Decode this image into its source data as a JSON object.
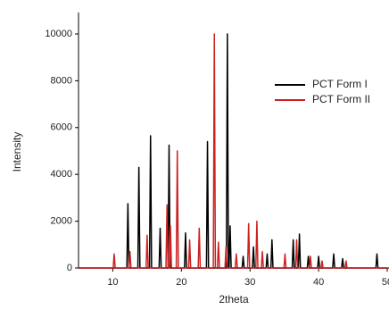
{
  "chart_data": {
    "type": "line",
    "xlabel": "2theta",
    "ylabel": "Intensity",
    "xlim": [
      5,
      50
    ],
    "ylim": [
      0,
      10000
    ],
    "xticks": [
      10,
      20,
      30,
      40,
      50
    ],
    "yticks": [
      0,
      2000,
      4000,
      6000,
      8000,
      10000
    ],
    "legend": "upper right",
    "series": [
      {
        "name": "PCT Form I",
        "color": "#000000",
        "x": [
          5,
          12.05,
          12.2,
          12.35,
          13.65,
          13.8,
          13.95,
          15.35,
          15.5,
          15.65,
          16.75,
          16.9,
          17.05,
          18.05,
          18.2,
          18.35,
          20.45,
          20.6,
          20.75,
          23.65,
          23.8,
          23.95,
          26.55,
          26.7,
          26.85,
          26.95,
          27.1,
          27.25,
          28.85,
          29.0,
          29.15,
          30.35,
          30.5,
          30.65,
          32.35,
          32.5,
          32.65,
          33.05,
          33.2,
          33.35,
          36.15,
          36.3,
          36.45,
          37.05,
          37.2,
          37.35,
          38.35,
          38.5,
          38.65,
          39.85,
          40.0,
          40.15,
          42.05,
          42.2,
          42.35,
          43.35,
          43.5,
          43.65,
          48.35,
          48.5,
          48.65,
          50
        ],
        "values": [
          0,
          0,
          2750,
          0,
          0,
          4300,
          0,
          0,
          5650,
          0,
          0,
          1700,
          0,
          0,
          5250,
          0,
          0,
          1500,
          0,
          0,
          5400,
          0,
          0,
          10000,
          0,
          0,
          1800,
          0,
          0,
          500,
          0,
          0,
          900,
          0,
          0,
          600,
          0,
          0,
          1200,
          0,
          0,
          1200,
          0,
          0,
          1450,
          0,
          0,
          500,
          0,
          0,
          500,
          0,
          0,
          600,
          0,
          0,
          400,
          0,
          0,
          600,
          0,
          0
        ]
      },
      {
        "name": "PCT Form II",
        "color": "#cc2222",
        "x": [
          5,
          10.05,
          10.2,
          10.35,
          12.35,
          12.5,
          12.65,
          14.85,
          15.0,
          15.15,
          17.75,
          17.9,
          18.05,
          18.25,
          18.4,
          18.55,
          19.25,
          19.4,
          19.55,
          21.05,
          21.2,
          21.35,
          22.45,
          22.6,
          22.75,
          24.65,
          24.8,
          24.95,
          25.25,
          25.4,
          25.55,
          26.35,
          26.5,
          26.65,
          27.85,
          28.0,
          28.15,
          29.65,
          29.8,
          29.95,
          30.85,
          31.0,
          31.15,
          31.65,
          31.8,
          31.95,
          34.95,
          35.1,
          35.25,
          36.65,
          36.8,
          36.95,
          38.65,
          38.8,
          38.95,
          40.35,
          40.5,
          40.65,
          43.85,
          44.0,
          44.15,
          50
        ],
        "values": [
          0,
          0,
          600,
          0,
          0,
          700,
          0,
          0,
          1400,
          0,
          0,
          2700,
          0,
          0,
          1800,
          0,
          0,
          5000,
          0,
          0,
          1200,
          0,
          0,
          1700,
          0,
          0,
          10000,
          0,
          0,
          1100,
          0,
          0,
          900,
          0,
          0,
          600,
          0,
          0,
          1900,
          0,
          0,
          2000,
          0,
          0,
          700,
          0,
          0,
          600,
          0,
          0,
          1200,
          0,
          0,
          500,
          0,
          0,
          300,
          0,
          0,
          300,
          0,
          0
        ]
      }
    ]
  }
}
